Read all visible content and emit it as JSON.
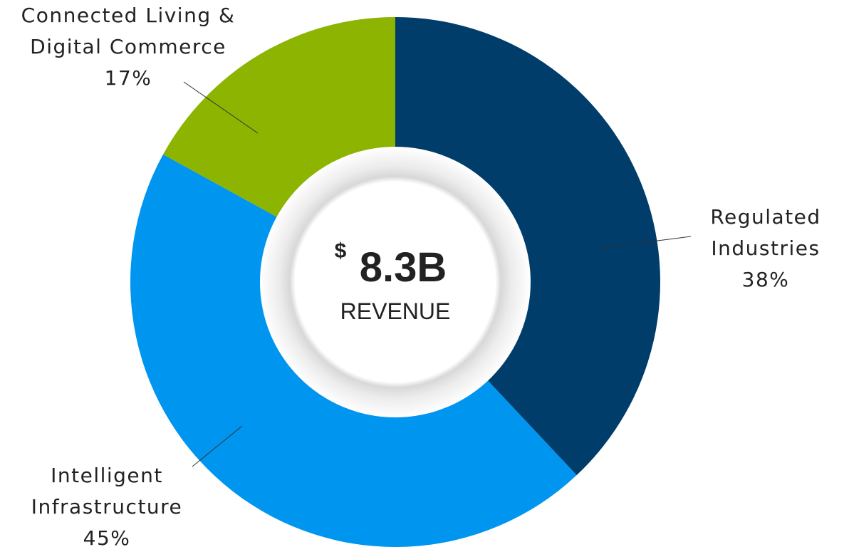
{
  "chart_data": {
    "type": "donut",
    "categories": [
      "Regulated Industries",
      "Intelligent Infrastructure",
      "Connected Living & Digital Commerce"
    ],
    "values": [
      38,
      45,
      17
    ],
    "value_labels": [
      "38%",
      "45%",
      "17%"
    ],
    "colors": [
      "#003d6b",
      "#0095ee",
      "#8cb400"
    ],
    "center_currency": "$",
    "center_value": "8.3B",
    "center_label": "REVENUE"
  }
}
